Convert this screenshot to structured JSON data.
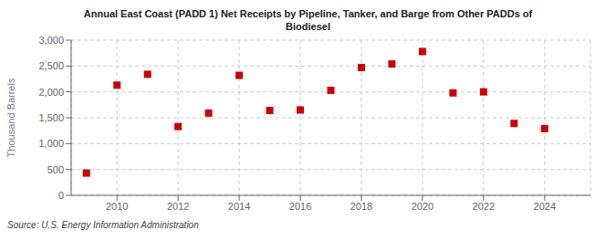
{
  "chart_data": {
    "type": "scatter",
    "title": "Annual East Coast (PADD 1) Net Receipts by Pipeline, Tanker, and Barge from Other PADDs of\nBiodiesel",
    "y_label": "Thousand Barrels",
    "annotations": [
      "Source: U.S. Energy Information Administration"
    ],
    "x": [
      2009,
      2010,
      2011,
      2012,
      2013,
      2014,
      2015,
      2016,
      2017,
      2018,
      2019,
      2020,
      2021,
      2022,
      2023,
      2024
    ],
    "values": [
      430,
      2130,
      2340,
      1330,
      1590,
      2320,
      1640,
      1650,
      2030,
      2470,
      2540,
      2780,
      1980,
      2000,
      1390,
      1290
    ],
    "color": "#cc0000",
    "marker": "square",
    "xlim": [
      2008.5,
      2025.5
    ],
    "xticks": [
      2010,
      2012,
      2014,
      2016,
      2018,
      2020,
      2022,
      2024
    ],
    "ylim": [
      0,
      3000
    ],
    "yticks": [
      0,
      500,
      {
        "value": 1000,
        "label": "1,000"
      },
      {
        "value": 1500,
        "label": "1,500"
      },
      {
        "value": 2000,
        "label": "2,000"
      },
      {
        "value": 2500,
        "label": "2,500"
      },
      {
        "value": 3000,
        "label": "3,000"
      }
    ],
    "grid": true
  }
}
